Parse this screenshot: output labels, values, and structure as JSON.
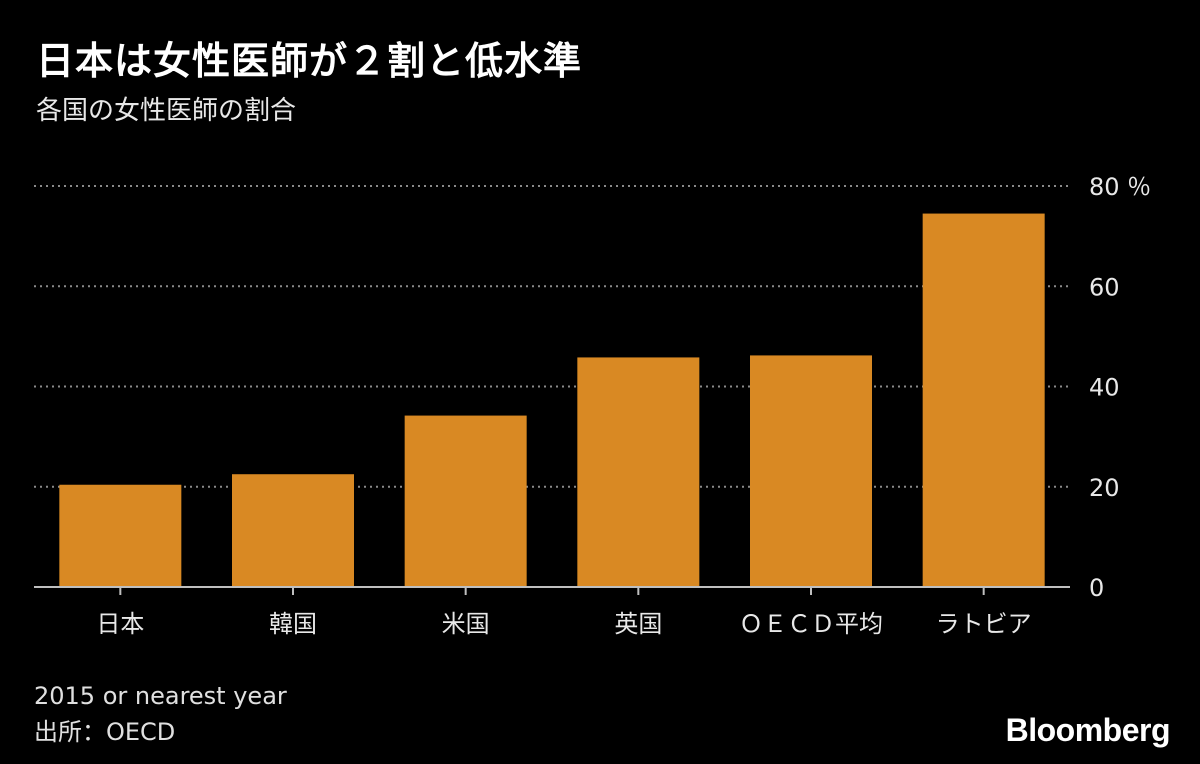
{
  "header": {
    "title": "日本は女性医師が２割と低水準",
    "subtitle": "各国の女性医師の割合"
  },
  "footer": {
    "note": "2015 or nearest year",
    "source": "出所：OECD",
    "logo": "Bloomberg"
  },
  "colors": {
    "background": "#000000",
    "bar": "#d98923",
    "grid": "#8a8a8a",
    "axis": "#bfbfbf",
    "text": "#ffffff"
  },
  "chart_data": {
    "type": "bar",
    "title": "日本は女性医師が２割と低水準",
    "subtitle": "各国の女性医師の割合",
    "categories": [
      "日本",
      "韓国",
      "米国",
      "英国",
      "ＯＥＣＤ平均",
      "ラトビア"
    ],
    "values": [
      20.4,
      22.5,
      34.2,
      45.8,
      46.2,
      74.5
    ],
    "unit": "%",
    "ylim": [
      0,
      80
    ],
    "yticks": [
      0,
      20,
      40,
      60,
      80
    ],
    "ytick_labels": [
      "0",
      "20",
      "40",
      "60",
      "80 ％"
    ],
    "y_axis_side": "right",
    "grid": true,
    "legend": "none"
  }
}
